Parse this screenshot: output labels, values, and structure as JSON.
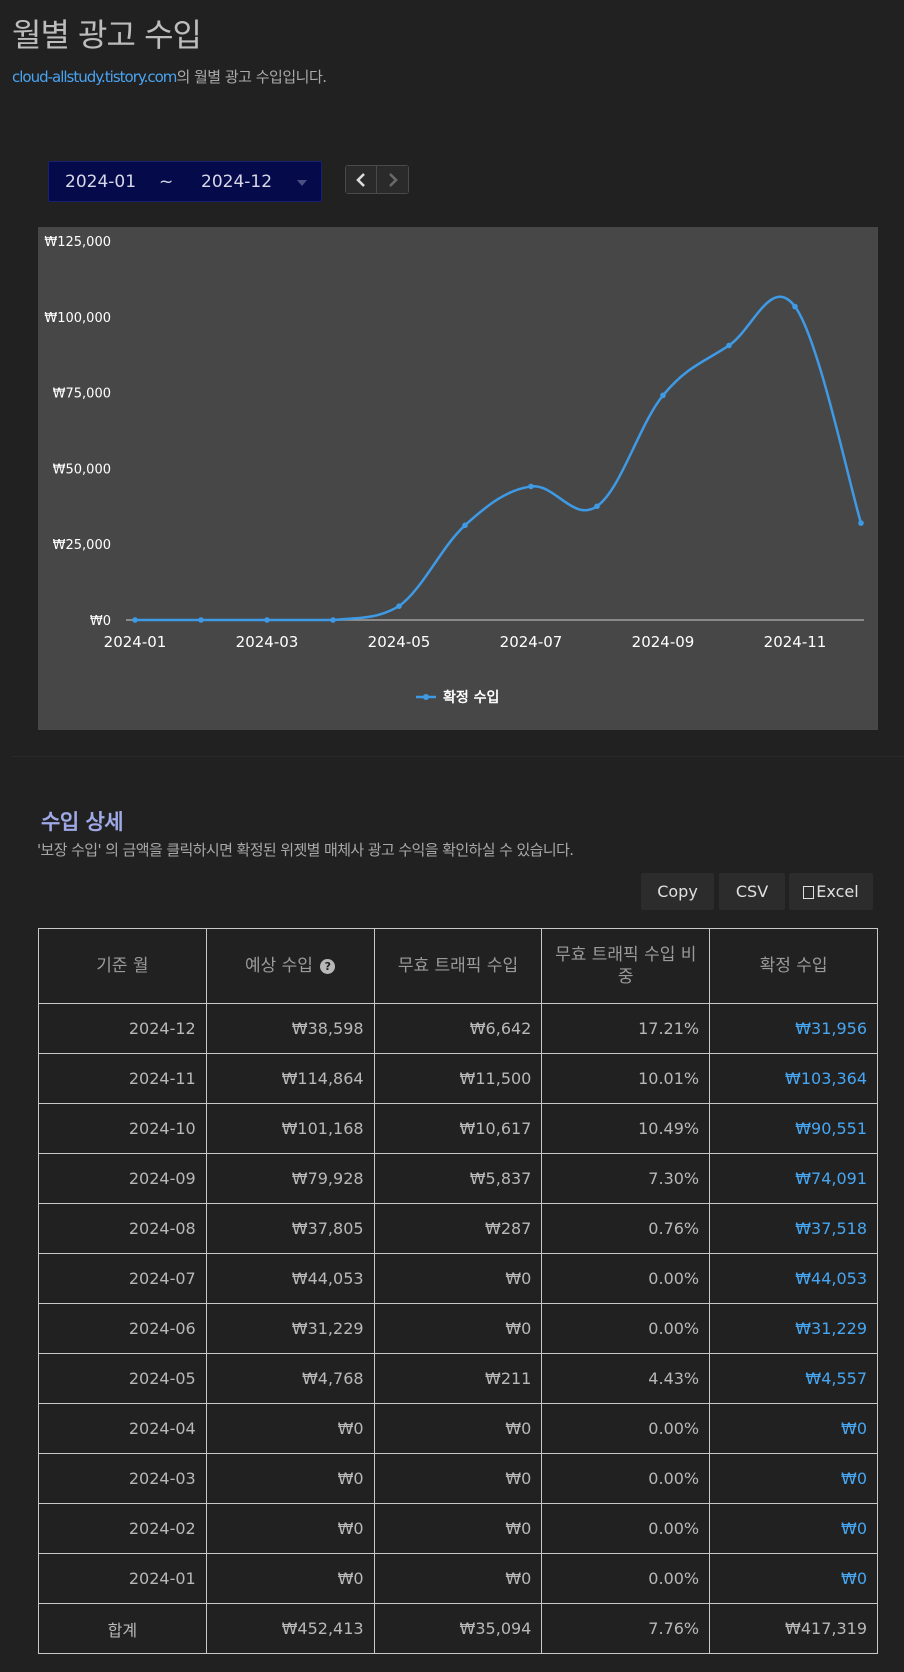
{
  "header": {
    "title": "월별 광고 수입",
    "site_link": "cloud-allstudy.tistory.com",
    "subtitle_suffix": "의 월별 광고 수입입니다."
  },
  "range": {
    "from": "2024-01",
    "separator": "~",
    "to": "2024-12"
  },
  "nav": {
    "prev_icon": "chevron-left-icon",
    "next_icon": "chevron-right-icon"
  },
  "chart_data": {
    "type": "line",
    "x": [
      "2024-01",
      "2024-02",
      "2024-03",
      "2024-04",
      "2024-05",
      "2024-06",
      "2024-07",
      "2024-08",
      "2024-09",
      "2024-10",
      "2024-11",
      "2024-12"
    ],
    "xtick_labels": [
      "2024-01",
      "2024-03",
      "2024-05",
      "2024-07",
      "2024-09",
      "2024-11"
    ],
    "ytick_labels": [
      "₩0",
      "₩25,000",
      "₩50,000",
      "₩75,000",
      "₩100,000",
      "₩125,000"
    ],
    "ylim": [
      0,
      125000
    ],
    "series": [
      {
        "name": "확정 수입",
        "color": "#3f9ae6",
        "values": [
          0,
          0,
          0,
          0,
          4557,
          31229,
          44053,
          37518,
          74091,
          90551,
          103364,
          31956
        ]
      }
    ],
    "legend": "bottom-center",
    "grid": false,
    "colors": {
      "background": "#474747",
      "axis": "#a0a0a0",
      "text": "#ffffff"
    }
  },
  "detail": {
    "title": "수입 상세",
    "description": "'보장 수입' 의 금액을 클릭하시면 확정된 위젯별 매체사 광고 수익을 확인하실 수 있습니다.",
    "buttons": {
      "copy": "Copy",
      "csv": "CSV",
      "excel": "Excel"
    },
    "columns": [
      "기준 월",
      "예상 수입",
      "무효 트래픽 수입",
      "무효 트래픽 수입 비중",
      "확정 수입"
    ],
    "rows": [
      {
        "month": "2024-12",
        "expected": "₩38,598",
        "invalid": "₩6,642",
        "ratio": "17.21%",
        "confirmed": "₩31,956"
      },
      {
        "month": "2024-11",
        "expected": "₩114,864",
        "invalid": "₩11,500",
        "ratio": "10.01%",
        "confirmed": "₩103,364"
      },
      {
        "month": "2024-10",
        "expected": "₩101,168",
        "invalid": "₩10,617",
        "ratio": "10.49%",
        "confirmed": "₩90,551"
      },
      {
        "month": "2024-09",
        "expected": "₩79,928",
        "invalid": "₩5,837",
        "ratio": "7.30%",
        "confirmed": "₩74,091"
      },
      {
        "month": "2024-08",
        "expected": "₩37,805",
        "invalid": "₩287",
        "ratio": "0.76%",
        "confirmed": "₩37,518"
      },
      {
        "month": "2024-07",
        "expected": "₩44,053",
        "invalid": "₩0",
        "ratio": "0.00%",
        "confirmed": "₩44,053"
      },
      {
        "month": "2024-06",
        "expected": "₩31,229",
        "invalid": "₩0",
        "ratio": "0.00%",
        "confirmed": "₩31,229"
      },
      {
        "month": "2024-05",
        "expected": "₩4,768",
        "invalid": "₩211",
        "ratio": "4.43%",
        "confirmed": "₩4,557"
      },
      {
        "month": "2024-04",
        "expected": "₩0",
        "invalid": "₩0",
        "ratio": "0.00%",
        "confirmed": "₩0"
      },
      {
        "month": "2024-03",
        "expected": "₩0",
        "invalid": "₩0",
        "ratio": "0.00%",
        "confirmed": "₩0"
      },
      {
        "month": "2024-02",
        "expected": "₩0",
        "invalid": "₩0",
        "ratio": "0.00%",
        "confirmed": "₩0"
      },
      {
        "month": "2024-01",
        "expected": "₩0",
        "invalid": "₩0",
        "ratio": "0.00%",
        "confirmed": "₩0"
      }
    ],
    "total": {
      "label": "합계",
      "expected": "₩452,413",
      "invalid": "₩35,094",
      "ratio": "7.76%",
      "confirmed": "₩417,319"
    }
  }
}
